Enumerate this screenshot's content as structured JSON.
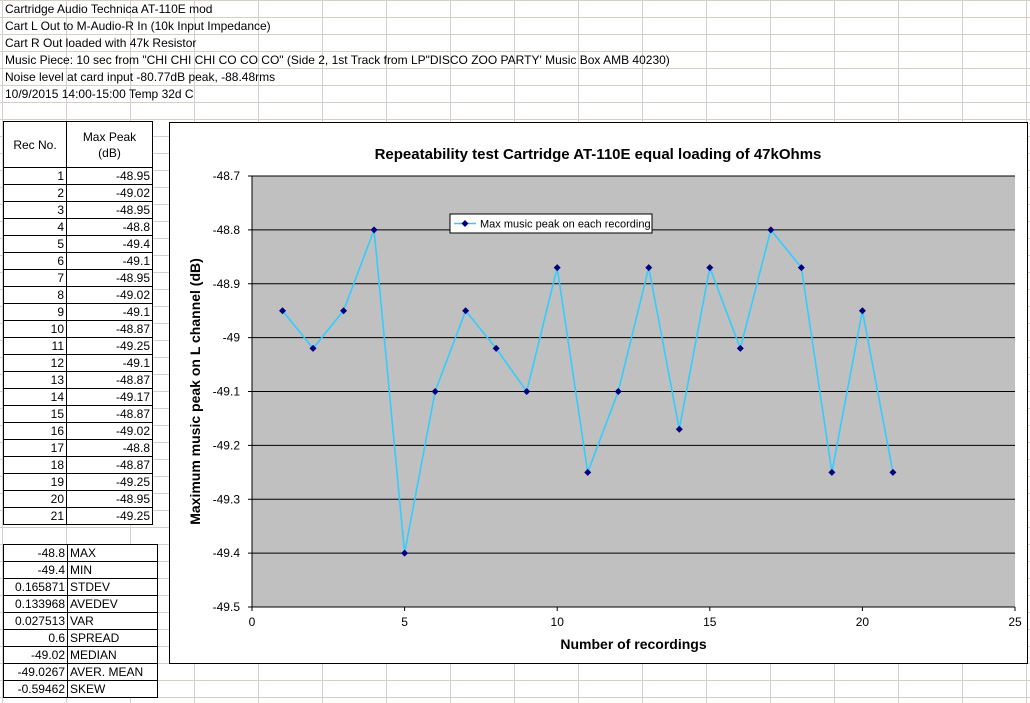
{
  "notes": [
    "Cartridge Audio Technica AT-110E mod",
    "Cart L Out to M-Audio-R In  (10k Input Impedance)",
    "Cart R Out loaded with 47k Resistor",
    "Music Piece: 10 sec from \"CHI CHI CHI CO CO CO\" (Side 2, 1st Track from LP\"DISCO ZOO PARTY' Music Box AMB 40230)",
    "Noise level at card input -80.77dB peak, -88.48rms",
    "10/9/2015 14:00-15:00 Temp 32d C"
  ],
  "table": {
    "col1_header": "Rec No.",
    "col2_header_line1": "Max Peak",
    "col2_header_line2": "(dB)",
    "rows": [
      {
        "rec": "1",
        "peak": "-48.95"
      },
      {
        "rec": "2",
        "peak": "-49.02"
      },
      {
        "rec": "3",
        "peak": "-48.95"
      },
      {
        "rec": "4",
        "peak": "-48.8"
      },
      {
        "rec": "5",
        "peak": "-49.4"
      },
      {
        "rec": "6",
        "peak": "-49.1"
      },
      {
        "rec": "7",
        "peak": "-48.95"
      },
      {
        "rec": "8",
        "peak": "-49.02"
      },
      {
        "rec": "9",
        "peak": "-49.1"
      },
      {
        "rec": "10",
        "peak": "-48.87"
      },
      {
        "rec": "11",
        "peak": "-49.25"
      },
      {
        "rec": "12",
        "peak": "-49.1"
      },
      {
        "rec": "13",
        "peak": "-48.87"
      },
      {
        "rec": "14",
        "peak": "-49.17"
      },
      {
        "rec": "15",
        "peak": "-48.87"
      },
      {
        "rec": "16",
        "peak": "-49.02"
      },
      {
        "rec": "17",
        "peak": "-48.8"
      },
      {
        "rec": "18",
        "peak": "-48.87"
      },
      {
        "rec": "19",
        "peak": "-49.25"
      },
      {
        "rec": "20",
        "peak": "-48.95"
      },
      {
        "rec": "21",
        "peak": "-49.25"
      }
    ]
  },
  "stats": [
    {
      "value": "-48.8",
      "label": "MAX"
    },
    {
      "value": "-49.4",
      "label": "MIN"
    },
    {
      "value": "0.165871",
      "label": "STDEV"
    },
    {
      "value": "0.133968",
      "label": "AVEDEV"
    },
    {
      "value": "0.027513",
      "label": "VAR"
    },
    {
      "value": "0.6",
      "label": "SPREAD"
    },
    {
      "value": "-49.02",
      "label": "MEDIAN"
    },
    {
      "value": "-49.0267",
      "label": "AVER. MEAN"
    },
    {
      "value": "-0.59462",
      "label": "SKEW"
    }
  ],
  "chart_data": {
    "type": "line",
    "title": "Repeatability test Cartridge AT-110E equal loading of 47kOhms",
    "xlabel": "Number of recordings",
    "ylabel": "Maximum music peak on L channel (dB)",
    "xlim": [
      0,
      25
    ],
    "ylim": [
      -49.5,
      -48.7
    ],
    "xticks": [
      "0",
      "5",
      "10",
      "15",
      "20",
      "25"
    ],
    "yticks": [
      "-48.7",
      "-48.8",
      "-48.9",
      "-49",
      "-49.1",
      "-49.2",
      "-49.3",
      "-49.4",
      "-49.5"
    ],
    "grid": "horizontal",
    "legend_position": "top-left",
    "line_color": "#33ccff",
    "marker_color": "#000080",
    "plot_bg": "#c0c0c0",
    "series": [
      {
        "name": "Max music peak on each recording",
        "x": [
          1,
          2,
          3,
          4,
          5,
          6,
          7,
          8,
          9,
          10,
          11,
          12,
          13,
          14,
          15,
          16,
          17,
          18,
          19,
          20,
          21
        ],
        "y": [
          -48.95,
          -49.02,
          -48.95,
          -48.8,
          -49.4,
          -49.1,
          -48.95,
          -49.02,
          -49.1,
          -48.87,
          -49.25,
          -49.1,
          -48.87,
          -49.17,
          -48.87,
          -49.02,
          -48.8,
          -48.87,
          -49.25,
          -48.95,
          -49.25
        ]
      }
    ]
  }
}
